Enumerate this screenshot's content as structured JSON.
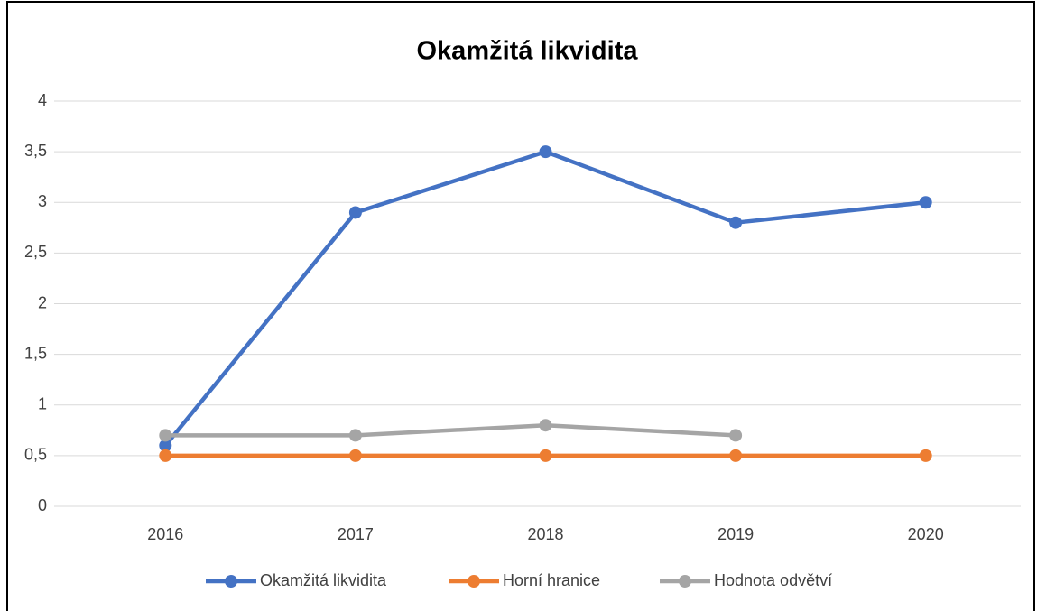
{
  "chart_data": {
    "type": "line",
    "title": "Okamžitá likvidita",
    "categories": [
      "2016",
      "2017",
      "2018",
      "2019",
      "2020"
    ],
    "series": [
      {
        "name": "Okamžitá likvidita",
        "color": "#4472c4",
        "values": [
          0.6,
          2.9,
          3.5,
          2.8,
          3.0
        ]
      },
      {
        "name": "Horní hranice",
        "color": "#ed7d31",
        "values": [
          0.5,
          0.5,
          0.5,
          0.5,
          0.5
        ]
      },
      {
        "name": "Hodnota odvětví",
        "color": "#a5a5a5",
        "values": [
          0.7,
          0.7,
          0.8,
          0.7,
          null
        ]
      }
    ],
    "ylim": [
      0,
      4
    ],
    "yticks": [
      0,
      {
        "value": 0.5,
        "label": "0,5"
      },
      1,
      {
        "value": 1.5,
        "label": "1,5"
      },
      2,
      {
        "value": 2.5,
        "label": "2,5"
      },
      3,
      {
        "value": 3.5,
        "label": "3,5"
      },
      4
    ],
    "grid": true,
    "legend": "bottom"
  }
}
